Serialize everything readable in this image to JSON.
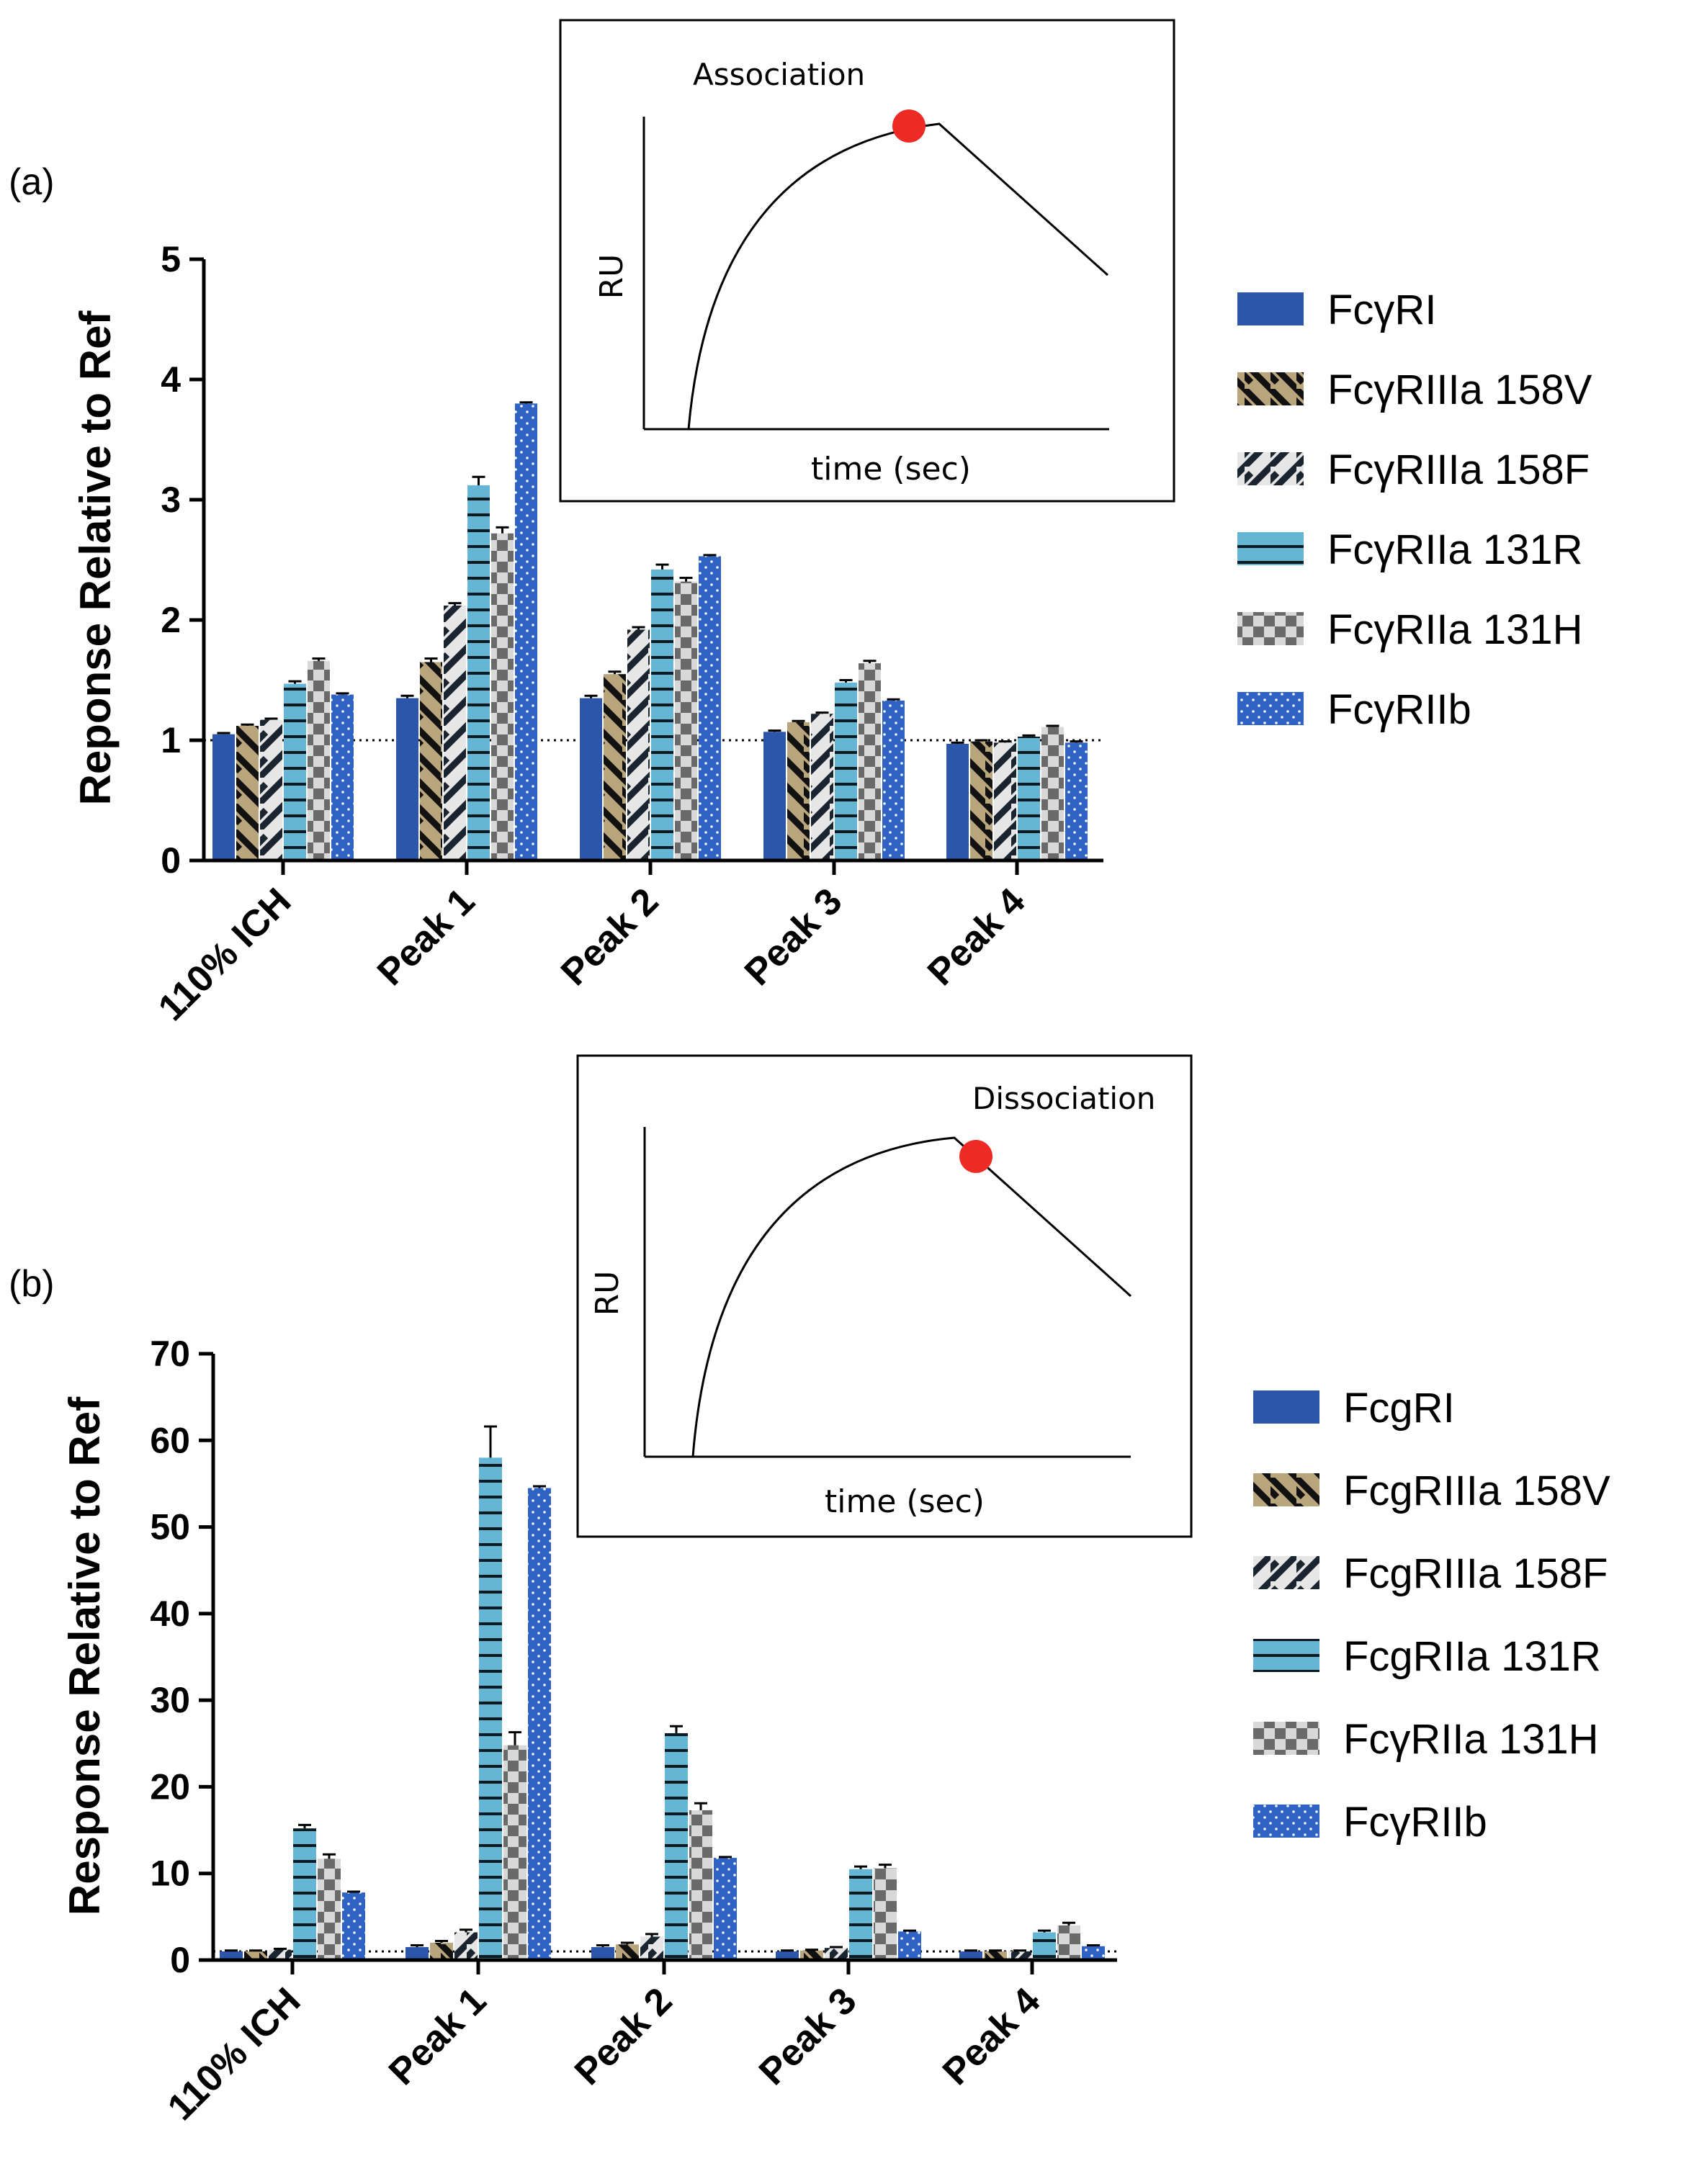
{
  "colors": {
    "FcyRI": "#2c56aa",
    "158V_bg": "#b8a57c",
    "158F_bg": "#e6e6e6",
    "131R": "#64b6d4",
    "131H_a": "#6e6e6e",
    "131H_b": "#d8d8d8",
    "RIIb": "#2e63c4",
    "hatch": "#111111",
    "marker": "#ee2a24"
  },
  "chart_data": [
    {
      "panel": "(a)",
      "type": "bar",
      "ylabel": "Reponse  Relative to  Ref",
      "ylim": [
        0,
        5
      ],
      "yticks": [
        "0",
        "1",
        "2",
        "3",
        "4",
        "5"
      ],
      "reference_line": 1,
      "categories": [
        "110% ICH",
        "Peak 1",
        "Peak 2",
        "Peak 3",
        "Peak 4"
      ],
      "series": [
        {
          "name": "FcγRI",
          "pattern": "solid",
          "values": [
            1.05,
            1.35,
            1.35,
            1.07,
            0.97
          ],
          "errors": [
            0.01,
            0.02,
            0.02,
            0.01,
            0.01
          ]
        },
        {
          "name": "FcγRIIIa 158V",
          "pattern": "hatch-back",
          "values": [
            1.12,
            1.65,
            1.55,
            1.15,
            0.99
          ],
          "errors": [
            0.01,
            0.03,
            0.02,
            0.01,
            0.01
          ]
        },
        {
          "name": "FcγRIIIa 158F",
          "pattern": "hatch-fwd",
          "values": [
            1.17,
            2.12,
            1.92,
            1.22,
            0.98
          ],
          "errors": [
            0.01,
            0.02,
            0.02,
            0.01,
            0.01
          ]
        },
        {
          "name": "FcγRIIa 131R",
          "pattern": "hlines",
          "values": [
            1.47,
            3.12,
            2.42,
            1.48,
            1.03
          ],
          "errors": [
            0.02,
            0.07,
            0.04,
            0.02,
            0.01
          ]
        },
        {
          "name": "FcγRIIa 131H",
          "pattern": "checker",
          "values": [
            1.66,
            2.72,
            2.32,
            1.64,
            1.11
          ],
          "errors": [
            0.02,
            0.05,
            0.03,
            0.02,
            0.01
          ]
        },
        {
          "name": "FcγRIIb",
          "pattern": "dots",
          "values": [
            1.38,
            3.8,
            2.53,
            1.33,
            0.98
          ],
          "errors": [
            0.01,
            0.01,
            0.01,
            0.01,
            0.01
          ]
        }
      ],
      "inset": {
        "label": "Association",
        "xlabel": "time (sec)",
        "ylabel": "RU"
      },
      "legend_position": "right"
    },
    {
      "panel": "(b)",
      "type": "bar",
      "ylabel": "Response Relative to Ref",
      "ylim": [
        0,
        70
      ],
      "yticks": [
        "0",
        "10",
        "20",
        "30",
        "40",
        "50",
        "60",
        "70"
      ],
      "reference_line": 1,
      "categories": [
        "110% ICH",
        "Peak 1",
        "Peak 2",
        "Peak 3",
        "Peak 4"
      ],
      "series": [
        {
          "name": "FcgRI",
          "pattern": "solid",
          "values": [
            1.0,
            1.5,
            1.5,
            1.0,
            1.0
          ],
          "errors": [
            0.1,
            0.2,
            0.2,
            0.1,
            0.1
          ]
        },
        {
          "name": "FcgRIIIa 158V",
          "pattern": "hatch-back",
          "values": [
            1.0,
            2.0,
            1.8,
            1.1,
            1.0
          ],
          "errors": [
            0.1,
            0.2,
            0.2,
            0.1,
            0.1
          ]
        },
        {
          "name": "FcgRIIIa 158F",
          "pattern": "hatch-fwd",
          "values": [
            1.2,
            3.2,
            2.7,
            1.4,
            1.0
          ],
          "errors": [
            0.1,
            0.3,
            0.3,
            0.1,
            0.1
          ]
        },
        {
          "name": "FcgRIIa 131R",
          "pattern": "hlines",
          "values": [
            15.2,
            58.0,
            26.2,
            10.5,
            3.2
          ],
          "errors": [
            0.4,
            3.6,
            0.8,
            0.3,
            0.2
          ]
        },
        {
          "name": "FcγRIIa 131H",
          "pattern": "checker",
          "values": [
            11.7,
            24.8,
            17.3,
            10.6,
            4.0
          ],
          "errors": [
            0.5,
            1.5,
            0.8,
            0.4,
            0.3
          ]
        },
        {
          "name": "FcγRIIb",
          "pattern": "dots",
          "values": [
            7.8,
            54.5,
            11.8,
            3.3,
            1.6
          ],
          "errors": [
            0.1,
            0.2,
            0.1,
            0.1,
            0.1
          ]
        }
      ],
      "inset": {
        "label": "Dissociation",
        "xlabel": "time (sec)",
        "ylabel": "RU"
      },
      "legend_position": "right"
    }
  ]
}
